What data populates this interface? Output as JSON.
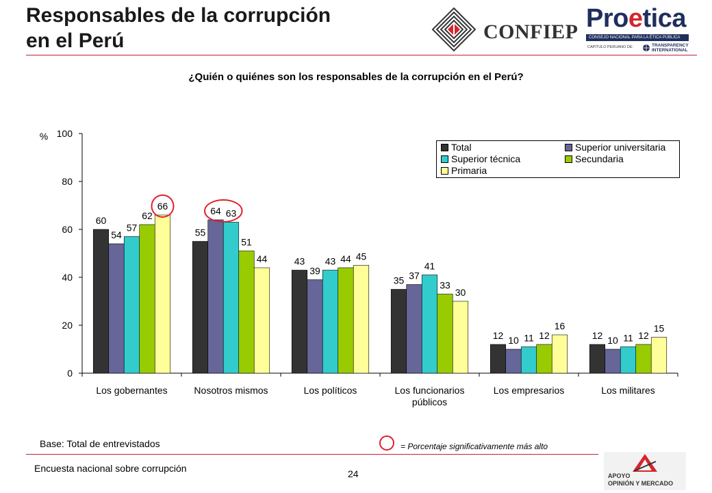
{
  "title": {
    "line1": "Responsables de la corrupción",
    "line2": "en el Perú"
  },
  "logos": {
    "confiep": "CONFIEP",
    "proetica_pre": "Pro",
    "proetica_accent": "e",
    "proetica_post": "tica",
    "proetica_band": "CONSEJO NACIONAL PARA LA ÉTICA PÚBLICA",
    "proetica_chapter": "CAPÍTULO PERUANO DE:",
    "ti_line1": "TRANSPARENCY",
    "ti_line2": "INTERNATIONAL",
    "apoyo_line1": "APOYO",
    "apoyo_line2": "OPINIÓN Y MERCADO"
  },
  "question": "¿Quién o quiénes son los responsables de la corrupción en el Perú?",
  "chart_data": {
    "type": "bar",
    "title": "¿Quién o quiénes son los responsables de la corrupción en el Perú?",
    "ylabel": "%",
    "xlabel": "",
    "ylim": [
      0,
      100
    ],
    "yticks": [
      0,
      20,
      40,
      60,
      80,
      100
    ],
    "categories": [
      [
        "Los gobernantes"
      ],
      [
        "Nosotros mismos"
      ],
      [
        "Los políticos"
      ],
      [
        "Los funcionarios",
        "públicos"
      ],
      [
        "Los empresarios"
      ],
      [
        "Los militares"
      ]
    ],
    "series": [
      {
        "name": "Total",
        "color": "#333333",
        "values": [
          60,
          55,
          43,
          35,
          12,
          12
        ]
      },
      {
        "name": "Superior universitaria",
        "color": "#666699",
        "values": [
          54,
          64,
          39,
          37,
          10,
          10
        ]
      },
      {
        "name": "Superior técnica",
        "color": "#33cccc",
        "values": [
          57,
          63,
          43,
          41,
          11,
          11
        ]
      },
      {
        "name": "Secundaria",
        "color": "#99cc00",
        "values": [
          62,
          51,
          44,
          33,
          12,
          12
        ]
      },
      {
        "name": "Primaria",
        "color": "#ffff99",
        "values": [
          66,
          44,
          45,
          30,
          16,
          15
        ]
      }
    ],
    "highlighted": [
      [
        0,
        4
      ],
      [
        1,
        1
      ],
      [
        1,
        2
      ]
    ],
    "legend_position": "top-right"
  },
  "footer": {
    "base": "Base: Total de entrevistados",
    "note": "= Porcentaje significativamente más alto",
    "survey": "Encuesta nacional sobre corrupción",
    "page": "24"
  },
  "colors": {
    "accent_red": "#c0203a",
    "highlight_red": "#e0202a"
  }
}
